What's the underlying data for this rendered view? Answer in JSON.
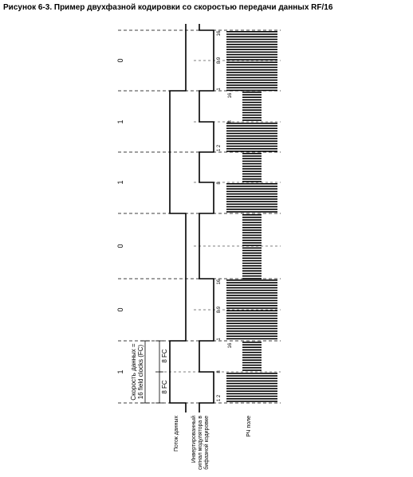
{
  "caption": "Рисунок 6-3. Пример двухфазной кодировки со скоростью передачи данных  RF/16",
  "bits": [
    "0",
    "1",
    "1",
    "0",
    "0",
    "1"
  ],
  "labels": {
    "data_stream": "Поток данных",
    "inverted_signal_line1": "Инвертированный",
    "inverted_signal_line2": "сигнал модулятора в",
    "inverted_signal_line3": "бифазной кодировке",
    "rf_field": "РЧ поле",
    "rate_line1": "Скорость данных =",
    "rate_line2": "16 field clocks (FC)",
    "half_top": "8 FC",
    "half_bottom": "8 FC"
  },
  "tick_labels": {
    "n16": "16",
    "n12": "1 2",
    "n89": "8 9",
    "n1": "1",
    "n8": "8"
  }
}
